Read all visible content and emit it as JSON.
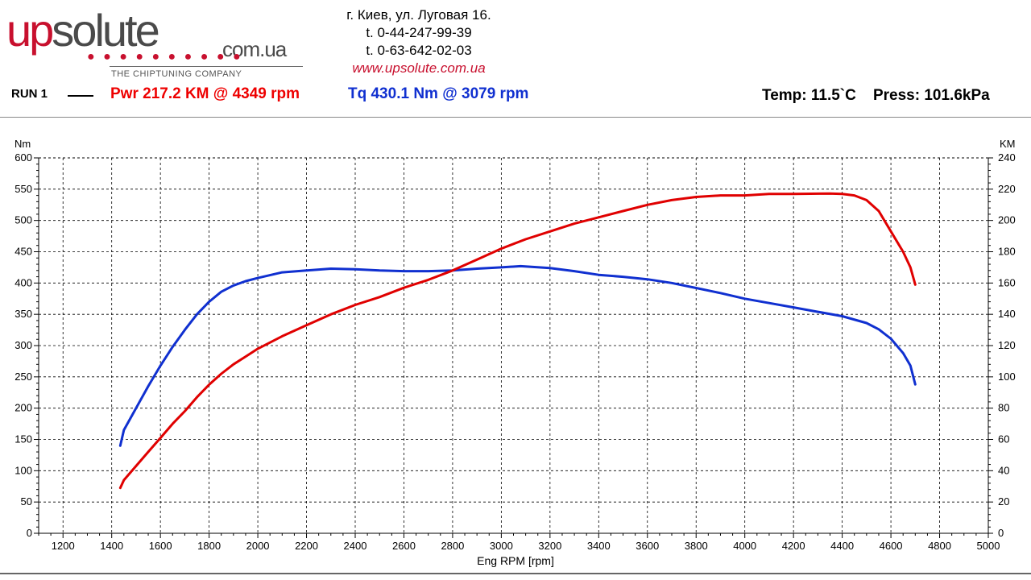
{
  "logo": {
    "word_up": "up",
    "word_solute": "solute",
    "domain": "com.ua",
    "dots": "● ● ● ● ● ● ● ● ● ●",
    "tagline": "THE CHIPTUNING COMPANY"
  },
  "contact": {
    "address": "г. Киев, ул. Луговая 16.",
    "phone1": "t. 0-44-247-99-39",
    "phone2": "t. 0-63-642-02-03",
    "website": "www.upsolute.com.ua"
  },
  "header": {
    "run_label": "RUN 1",
    "power_summary": "Pwr  217.2 KM @ 4349 rpm",
    "torque_summary": "Tq 430.1 Nm @ 3079 rpm",
    "conditions": "Temp: 11.5`C    Press: 101.6kPa"
  },
  "colors": {
    "power": "#e00000",
    "torque": "#1030d0",
    "grid": "#000000"
  },
  "chart_data": {
    "type": "line",
    "xlabel": "Eng RPM [rpm]",
    "ylabel_left": "Nm",
    "ylabel_right": "KM",
    "xlim": [
      1100,
      5000
    ],
    "ylim_left": [
      0,
      600
    ],
    "ylim_right": [
      0,
      240
    ],
    "x_ticks": [
      1200,
      1400,
      1600,
      1800,
      2000,
      2200,
      2400,
      2600,
      2800,
      3000,
      3200,
      3400,
      3600,
      3800,
      4000,
      4200,
      4400,
      4600,
      4800,
      5000
    ],
    "y_left_ticks": [
      0,
      50,
      100,
      150,
      200,
      250,
      300,
      350,
      400,
      450,
      500,
      550,
      600
    ],
    "y_right_ticks": [
      0,
      20,
      40,
      60,
      80,
      100,
      120,
      140,
      160,
      180,
      200,
      220,
      240
    ],
    "grid": true,
    "series": [
      {
        "name": "Tq",
        "axis": "left",
        "color": "#1030d0",
        "x": [
          1435,
          1450,
          1500,
          1550,
          1600,
          1650,
          1700,
          1750,
          1800,
          1850,
          1900,
          1950,
          2000,
          2100,
          2200,
          2300,
          2400,
          2500,
          2600,
          2700,
          2800,
          2900,
          3000,
          3079,
          3200,
          3300,
          3400,
          3500,
          3600,
          3700,
          3800,
          3900,
          4000,
          4100,
          4200,
          4300,
          4400,
          4500,
          4550,
          4600,
          4650,
          4680,
          4700
        ],
        "y": [
          140,
          165,
          200,
          235,
          268,
          298,
          325,
          350,
          370,
          386,
          396,
          403,
          408,
          417,
          420,
          423,
          422,
          420,
          419,
          419,
          420,
          423,
          425,
          427,
          424,
          419,
          413,
          410,
          406,
          400,
          392,
          384,
          375,
          368,
          361,
          354,
          347,
          336,
          326,
          311,
          288,
          268,
          238
        ]
      },
      {
        "name": "Pwr",
        "axis": "right",
        "color": "#e00000",
        "x": [
          1435,
          1450,
          1500,
          1550,
          1600,
          1650,
          1700,
          1750,
          1800,
          1850,
          1900,
          1950,
          2000,
          2100,
          2200,
          2300,
          2400,
          2500,
          2600,
          2700,
          2800,
          2900,
          3000,
          3100,
          3200,
          3300,
          3400,
          3500,
          3600,
          3700,
          3800,
          3900,
          4000,
          4100,
          4200,
          4349,
          4400,
          4450,
          4500,
          4550,
          4600,
          4650,
          4680,
          4700
        ],
        "y": [
          29,
          34,
          43,
          52,
          61,
          70,
          78,
          87,
          95,
          102,
          108,
          113,
          118,
          126,
          133,
          140,
          146,
          151,
          157,
          162,
          168,
          175,
          182,
          188,
          193,
          198,
          202,
          206,
          210,
          213,
          215,
          216,
          216,
          217,
          217,
          217.2,
          217,
          216,
          213,
          206,
          193,
          180,
          170,
          159
        ]
      }
    ]
  }
}
